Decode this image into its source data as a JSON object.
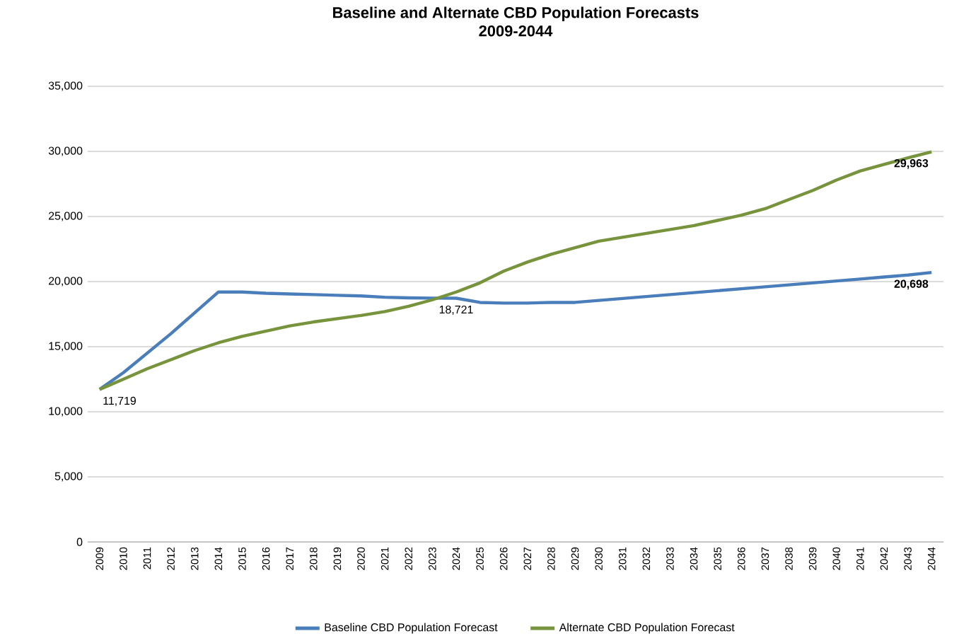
{
  "chart_data": {
    "type": "line",
    "title": "Baseline and Alternate CBD Population Forecasts",
    "subtitle": "2009-2044",
    "categories": [
      "2009",
      "2010",
      "2011",
      "2012",
      "2013",
      "2014",
      "2015",
      "2016",
      "2017",
      "2018",
      "2019",
      "2020",
      "2021",
      "2022",
      "2023",
      "2024",
      "2025",
      "2026",
      "2027",
      "2028",
      "2029",
      "2030",
      "2031",
      "2032",
      "2033",
      "2034",
      "2035",
      "2036",
      "2037",
      "2038",
      "2039",
      "2040",
      "2041",
      "2042",
      "2043",
      "2044"
    ],
    "series": [
      {
        "name": "Baseline CBD Population Forecast",
        "color": "#4a7ebb",
        "values": [
          11719,
          13000,
          14500,
          16000,
          17600,
          19200,
          19200,
          19100,
          19050,
          19000,
          18950,
          18900,
          18800,
          18750,
          18730,
          18721,
          18400,
          18350,
          18350,
          18400,
          18400,
          18550,
          18700,
          18850,
          19000,
          19150,
          19300,
          19450,
          19600,
          19750,
          19900,
          20050,
          20200,
          20350,
          20500,
          20698
        ],
        "value_labels": [
          "11,719",
          null,
          null,
          null,
          null,
          null,
          null,
          null,
          null,
          null,
          null,
          null,
          null,
          null,
          null,
          "18,721",
          null,
          null,
          null,
          null,
          null,
          null,
          null,
          null,
          null,
          null,
          null,
          null,
          null,
          null,
          null,
          null,
          null,
          null,
          null,
          "**20,698**"
        ]
      },
      {
        "name": "Alternate CBD Population Forecast",
        "color": "#77933c",
        "values": [
          11719,
          12500,
          13300,
          14000,
          14700,
          15300,
          15800,
          16200,
          16600,
          16900,
          17150,
          17400,
          17700,
          18100,
          18600,
          19200,
          19900,
          20800,
          21500,
          22100,
          22600,
          23100,
          23400,
          23700,
          24000,
          24300,
          24700,
          25100,
          25600,
          26300,
          27000,
          27800,
          28500,
          29000,
          29500,
          29963
        ],
        "value_labels": [
          null,
          null,
          null,
          null,
          null,
          null,
          null,
          null,
          null,
          null,
          null,
          null,
          null,
          null,
          null,
          null,
          null,
          null,
          null,
          null,
          null,
          null,
          null,
          null,
          null,
          null,
          null,
          null,
          null,
          null,
          null,
          null,
          null,
          null,
          null,
          "**29,963**"
        ]
      }
    ],
    "ylim": [
      0,
      35000
    ],
    "yticks": [
      0,
      {
        "value": 5000,
        "label": "5,000"
      },
      {
        "value": 10000,
        "label": "10,000"
      },
      {
        "value": 15000,
        "label": "15,000"
      },
      {
        "value": 20000,
        "label": "20,000"
      },
      {
        "value": 25000,
        "label": "25,000"
      },
      {
        "value": 30000,
        "label": "30,000"
      },
      {
        "value": 35000,
        "label": "35,000"
      }
    ],
    "grid": "y",
    "legend": "bottom",
    "marker": "none",
    "line_style": "solid"
  }
}
